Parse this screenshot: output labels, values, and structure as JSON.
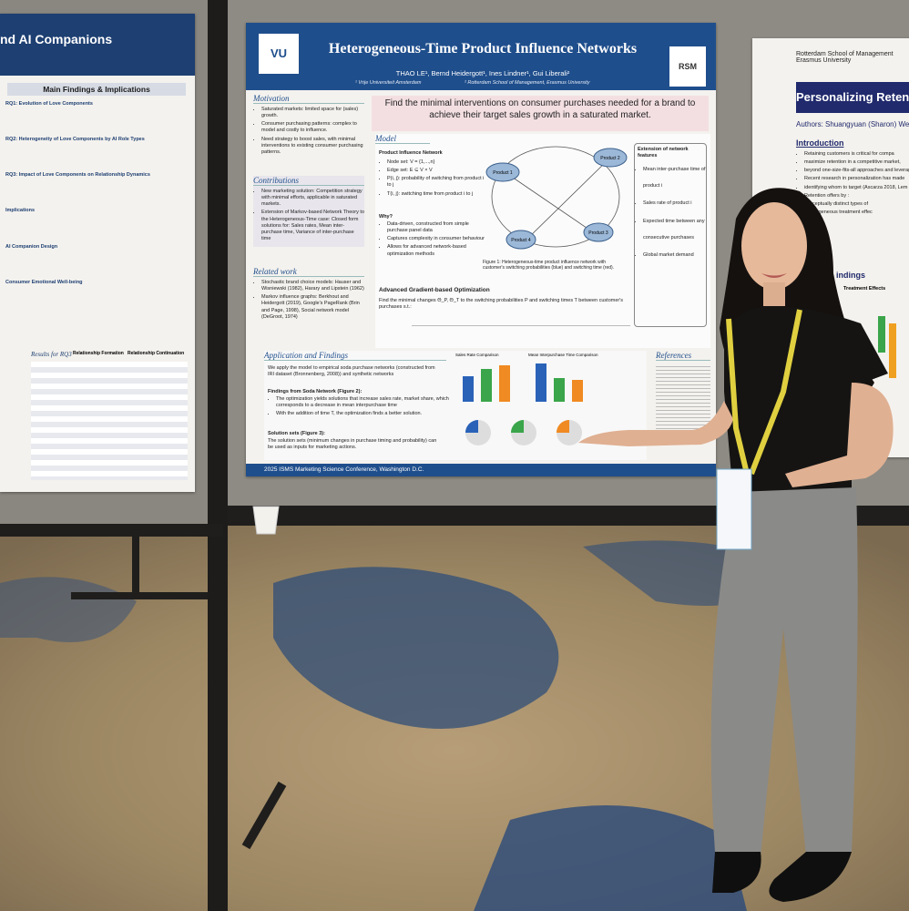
{
  "left_poster": {
    "title": "nd AI Companions",
    "section": "Main Findings & Implications",
    "subsections": [
      "RQ1: Evolution of Love Components",
      "RQ2: Heterogeneity of Love Components by AI Role Types",
      "RQ3: Impact of Love Components on Relationship Dynamics",
      "Implications",
      "AI Companion Design",
      "Consumer Emotional Well-being"
    ],
    "table_title": "Results for RQ3",
    "table_headers": [
      "Relationship Formation",
      "Relationship Continuation"
    ]
  },
  "main_poster": {
    "logo_left": "VU",
    "logo_right": "RSM",
    "title": "Heterogeneous-Time Product Influence Networks",
    "authors": "THAO LE¹, Bernd Heidergott¹, Ines Lindner¹, Gui Liberali²",
    "affiliations": [
      "¹ Vrije Universiteit Amsterdam",
      "² Rotterdam School of Management, Erasmus University"
    ],
    "banner": "Find the minimal interventions on consumer purchases needed for a brand to achieve their target sales growth in a saturated market.",
    "motivation": {
      "heading": "Motivation",
      "items": [
        "Saturated markets: limited space for (sales) growth.",
        "Consumer purchasing patterns: complex to model and costly to influence.",
        "Need strategy to boost sales, with minimal interventions to existing consumer purchasing patterns."
      ]
    },
    "contributions": {
      "heading": "Contributions",
      "items": [
        "New marketing solution: Competition strategy with minimal efforts, applicable in saturated markets.",
        "Extension of Markov-based Network Theory to the Heterogeneous-Time case: Closed form solutions for: Sales rates, Mean inter-purchase time, Variance of inter-purchase time"
      ]
    },
    "related_work": {
      "heading": "Related work",
      "items": [
        "Stochastic brand choice models: Hauser and Wisniewski (1982), Harary and Lipstein (1962)",
        "Markov influence graphs: Berkhout and Heidergott (2019), Google's PageRank (Brin and Page, 1998), Social network model (DeGroot, 1974)"
      ]
    },
    "model": {
      "heading": "Model",
      "subheading": "Product Influence Network",
      "items": [
        "Node set: V = {1,...,n}",
        "Edge set: E ⊆ V × V",
        "P(i, j): probability of switching from product i to j",
        "T(i, j): switching time from product i to j"
      ],
      "why_heading": "Why?",
      "why_items": [
        "Data-driven, constructed from simple purchase panel data",
        "Captures complexity in consumer behaviour",
        "Allows for advanced network-based optimization methods"
      ],
      "nodes": [
        "Product 1",
        "Product 2",
        "Product 3",
        "Product 4"
      ],
      "figure_caption": "Figure 1: Heterogeneous-time product influence network with customer's switching probabilities (blue) and switching time (red).",
      "extension_heading": "Extension of network features",
      "extension_items": [
        "Mean inter-purchase time of product i",
        "Sales rate of product i",
        "Expected time between any consecutive purchases",
        "Global market demand"
      ],
      "optimization_heading": "Advanced Gradient-based Optimization",
      "optimization_text": "Find the minimal changes Θ_P, Θ_T to the switching probabilities P and switching times T between customer's purchases s.t.:"
    },
    "application": {
      "heading": "Application and Findings",
      "intro": "We apply the model to empirical soda purchase networks (constructed from IRI dataset (Bronnenberg, 2008)) and synthetic networks",
      "findings_heading": "Findings from Soda Network (Figure 2):",
      "findings": [
        "The optimization yields solutions that increase sales rate, market share, which corresponds to a decrease in mean interpurchase time",
        "With the addition of time T, the optimization finds a better solution."
      ],
      "solution_heading": "Solution sets (Figure 3):",
      "solution_text": "The solution sets (minimum changes in purchase timing and probability) can be used as inputs for marketing actions.",
      "chart_titles": [
        "Sales Rate Comparison",
        "Mean Interpurchase Time Comparison"
      ]
    },
    "references_heading": "References",
    "footer": "2025 ISMS Marketing Science Conference, Washington D.C."
  },
  "right_poster": {
    "institution": "Rotterdam School of Management Erasmus University",
    "title": "Personalizing Retent",
    "authors": "Authors: Shuangyuan (Sharon) We",
    "intro_heading": "Introduction",
    "intro_items": [
      "Retaining customers is critical for compa",
      "maximize retention in a competitive market,",
      "beyond one-size-fits-all approaches and leverag",
      "Recent research in personalization has made",
      "identifying whom to target (Ascarza 2018, Lem",
      "Retention offers by :",
      "conceptually distinct types of",
      "heterogeneous treatment effec"
    ],
    "findings_heading": "indings",
    "findings_sub": "Treatment Effects"
  }
}
